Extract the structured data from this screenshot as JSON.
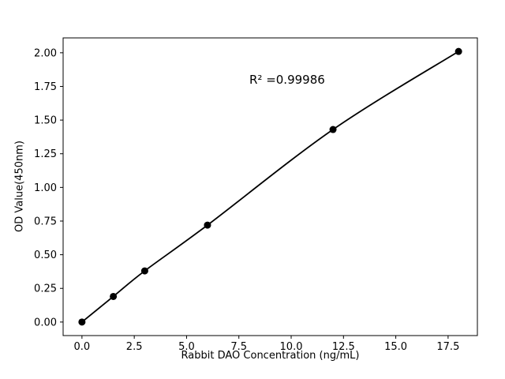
{
  "chart_data": {
    "type": "scatter",
    "title": "",
    "xlabel": "Rabbit DAO Concentration (ng/mL)",
    "ylabel": "OD Value(450nm)",
    "x": [
      0,
      1.5,
      3,
      6,
      12,
      18
    ],
    "y": [
      0.0,
      0.19,
      0.38,
      0.72,
      1.43,
      2.01
    ],
    "xlim": [
      -0.9,
      18.9
    ],
    "ylim": [
      -0.1005,
      2.1105
    ],
    "xtick_values": [
      0.0,
      2.5,
      5.0,
      7.5,
      10.0,
      12.5,
      15.0,
      17.5
    ],
    "xtick_labels": [
      "0.0",
      "2.5",
      "5.0",
      "7.5",
      "10.0",
      "12.5",
      "15.0",
      "17.5"
    ],
    "ytick_values": [
      0.0,
      0.25,
      0.5,
      0.75,
      1.0,
      1.25,
      1.5,
      1.75,
      2.0
    ],
    "ytick_labels": [
      "0.00",
      "0.25",
      "0.50",
      "0.75",
      "1.00",
      "1.25",
      "1.50",
      "1.75",
      "2.00"
    ],
    "annotation": {
      "text": "R² =0.99986",
      "x": 8.0,
      "y": 1.8
    },
    "line_color": "#000000",
    "marker_color": "#000000",
    "background": "#ffffff",
    "grid": false,
    "legend": null
  }
}
